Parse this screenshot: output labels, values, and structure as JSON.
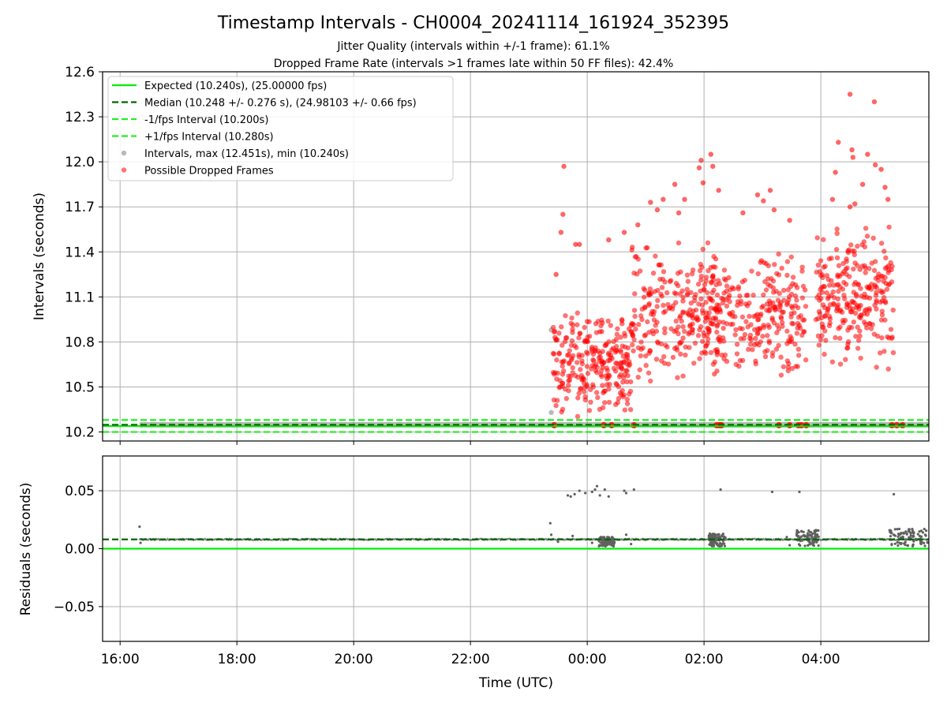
{
  "title": "Timestamp Intervals - CH0004_20241114_161924_352395",
  "subtitle_1": "Jitter Quality (intervals within +/-1 frame): 61.1%",
  "subtitle_2": "Dropped Frame Rate (intervals >1 frames late within 50 FF files): 42.4%",
  "colors": {
    "expected": "#00ee00",
    "median": "#006400",
    "bounds": "#22ee22",
    "intervals": "#808080",
    "dropped": "#ff0000",
    "grid": "#b0b0b0"
  },
  "chart_data": [
    {
      "type": "scatter",
      "name": "intervals",
      "ylabel": "Intervals (seconds)",
      "xlabel": "",
      "ylim": [
        10.14,
        12.6
      ],
      "xlim_hours": [
        15.7,
        29.85
      ],
      "yticks": [
        "10.2",
        "10.5",
        "10.8",
        "11.1",
        "11.4",
        "11.7",
        "12.0",
        "12.3",
        "12.6"
      ],
      "xticks": [
        "16:00",
        "18:00",
        "20:00",
        "22:00",
        "00:00",
        "02:00",
        "04:00"
      ],
      "grid": true,
      "legend_position": "top-left",
      "lines": [
        {
          "legend": "Expected (10.240s), (25.00000 fps)",
          "y": 10.24,
          "style": "solid",
          "color": "#00ee00"
        },
        {
          "legend": "Median (10.248 +/- 0.276 s), (24.98103 +/- 0.66 fps)",
          "y": 10.248,
          "style": "dashed",
          "color": "#006400"
        },
        {
          "legend": "-1/fps Interval (10.200s)",
          "y": 10.2,
          "style": "dashed",
          "color": "#22ee22"
        },
        {
          "legend": "+1/fps Interval (10.280s)",
          "y": 10.28,
          "style": "dashed",
          "color": "#22ee22"
        }
      ],
      "series": [
        {
          "name": "Intervals, max (12.451s), min (10.240s)",
          "color": "#808080",
          "baseline": {
            "y": 10.248,
            "x_start": "16:20",
            "x_end": "05:50"
          },
          "points": [
            [
              "23:23",
              10.88
            ],
            [
              "23:23",
              10.33
            ]
          ]
        },
        {
          "name": "Possible Dropped Frames",
          "color": "#ff0000",
          "clusters": [
            {
              "x_start": "23:25",
              "x_end": "00:45",
              "y_low": 10.3,
              "y_high": 11.0
            },
            {
              "x_start": "00:45",
              "x_end": "02:15",
              "y_low": 10.5,
              "y_high": 11.5
            },
            {
              "x_start": "02:05",
              "x_end": "03:45",
              "y_low": 10.55,
              "y_high": 11.4
            },
            {
              "x_start": "03:55",
              "x_end": "05:15",
              "y_low": 10.6,
              "y_high": 11.6
            }
          ],
          "outliers": [
            [
              "23:28",
              11.25
            ],
            [
              "23:33",
              11.53
            ],
            [
              "23:35",
              11.65
            ],
            [
              "23:36",
              11.97
            ],
            [
              "23:48",
              11.45
            ],
            [
              "23:52",
              11.45
            ],
            [
              "00:22",
              11.48
            ],
            [
              "00:38",
              11.53
            ],
            [
              "00:52",
              11.58
            ],
            [
              "01:05",
              11.73
            ],
            [
              "01:12",
              11.68
            ],
            [
              "01:18",
              11.75
            ],
            [
              "01:30",
              11.85
            ],
            [
              "01:34",
              11.66
            ],
            [
              "01:40",
              11.75
            ],
            [
              "01:55",
              11.96
            ],
            [
              "01:57",
              12.01
            ],
            [
              "01:59",
              11.86
            ],
            [
              "02:07",
              12.05
            ],
            [
              "02:09",
              11.97
            ],
            [
              "02:15",
              11.81
            ],
            [
              "02:40",
              11.66
            ],
            [
              "02:55",
              11.78
            ],
            [
              "03:01",
              11.74
            ],
            [
              "03:08",
              11.81
            ],
            [
              "03:12",
              11.68
            ],
            [
              "03:28",
              11.61
            ],
            [
              "04:12",
              11.75
            ],
            [
              "04:15",
              11.93
            ],
            [
              "04:18",
              12.13
            ],
            [
              "04:30",
              11.7
            ],
            [
              "04:32",
              12.08
            ],
            [
              "04:33",
              12.03
            ],
            [
              "04:35",
              11.72
            ],
            [
              "04:43",
              11.85
            ],
            [
              "04:48",
              12.05
            ],
            [
              "04:56",
              11.98
            ],
            [
              "05:02",
              11.95
            ],
            [
              "05:06",
              11.83
            ],
            [
              "05:09",
              11.75
            ],
            [
              "04:30",
              12.45
            ],
            [
              "04:55",
              12.4
            ]
          ],
          "on_baseline": [
            "23:26",
            "00:17",
            "00:25",
            "00:48",
            "02:13",
            "02:16",
            "02:18",
            "03:17",
            "03:28",
            "03:37",
            "03:40",
            "03:45",
            "05:13",
            "05:18",
            "05:24"
          ]
        }
      ]
    },
    {
      "type": "scatter",
      "name": "residuals",
      "ylabel": "Residuals (seconds)",
      "xlabel": "Time (UTC)",
      "ylim": [
        -0.08,
        0.08
      ],
      "yticks": [
        "−0.05",
        "0.00",
        "0.05"
      ],
      "xticks": [
        "16:00",
        "18:00",
        "20:00",
        "22:00",
        "00:00",
        "02:00",
        "04:00"
      ],
      "grid": true,
      "lines": [
        {
          "y": 0.0,
          "style": "solid",
          "color": "#00ee00"
        },
        {
          "y": 0.008,
          "style": "dashed",
          "color": "#006400"
        }
      ],
      "series": [
        {
          "name": "residuals",
          "color": "#606060",
          "baseline": {
            "y": 0.008,
            "x_start": "16:20",
            "x_end": "05:50"
          },
          "points": [
            [
              "16:20",
              0.019
            ],
            [
              "16:21",
              0.005
            ],
            [
              "23:22",
              0.022
            ],
            [
              "23:23",
              0.012
            ],
            [
              "23:40",
              0.046
            ],
            [
              "23:43",
              0.045
            ],
            [
              "23:47",
              0.047
            ],
            [
              "23:52",
              0.05
            ],
            [
              "23:58",
              0.048
            ],
            [
              "00:05",
              0.049
            ],
            [
              "00:08",
              0.051
            ],
            [
              "00:10",
              0.054
            ],
            [
              "00:13",
              0.046
            ],
            [
              "00:18",
              0.051
            ],
            [
              "00:22",
              0.045
            ],
            [
              "00:38",
              0.05
            ],
            [
              "00:40",
              0.048
            ],
            [
              "00:48",
              0.051
            ],
            [
              "02:17",
              0.051
            ],
            [
              "03:10",
              0.049
            ],
            [
              "03:38",
              0.049
            ],
            [
              "05:15",
              0.047
            ],
            [
              "23:30",
              0.006
            ],
            [
              "23:45",
              0.011
            ],
            [
              "00:05",
              0.005
            ],
            [
              "00:20",
              0.003
            ],
            [
              "00:25",
              0.009
            ],
            [
              "00:40",
              0.012
            ],
            [
              "00:45",
              0.004
            ],
            [
              "02:10",
              0.012
            ],
            [
              "02:15",
              0.003
            ],
            [
              "03:25",
              0.01
            ],
            [
              "03:28",
              0.003
            ],
            [
              "03:55",
              0.016
            ]
          ],
          "clusters": [
            {
              "x_start": "00:12",
              "x_end": "00:28",
              "y_low": 0.002,
              "y_high": 0.01
            },
            {
              "x_start": "02:05",
              "x_end": "02:22",
              "y_low": 0.002,
              "y_high": 0.013
            },
            {
              "x_start": "03:35",
              "x_end": "03:58",
              "y_low": 0.002,
              "y_high": 0.016
            },
            {
              "x_start": "05:10",
              "x_end": "05:50",
              "y_low": 0.002,
              "y_high": 0.017
            }
          ]
        }
      ]
    }
  ]
}
